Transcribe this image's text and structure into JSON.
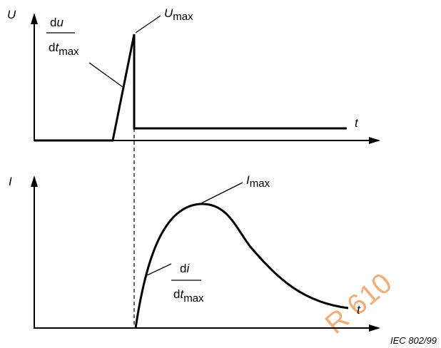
{
  "top_chart": {
    "y_label": "U",
    "x_label": "t",
    "slope_label": {
      "numerator_operator": "d",
      "numerator_variable": "u",
      "denominator_operator": "d",
      "denominator_variable": "t",
      "subscript": "max"
    },
    "peak_label": {
      "symbol": "U",
      "subscript": "max"
    }
  },
  "bottom_chart": {
    "y_label": "I",
    "x_label": "t",
    "slope_label": {
      "numerator_operator": "d",
      "numerator_variable": "i",
      "denominator_operator": "d",
      "denominator_variable": "t",
      "subscript": "max"
    },
    "peak_label": {
      "symbol": "I",
      "subscript": "max"
    }
  },
  "figure_id": "IEC  802/99",
  "watermark": "R 610"
}
